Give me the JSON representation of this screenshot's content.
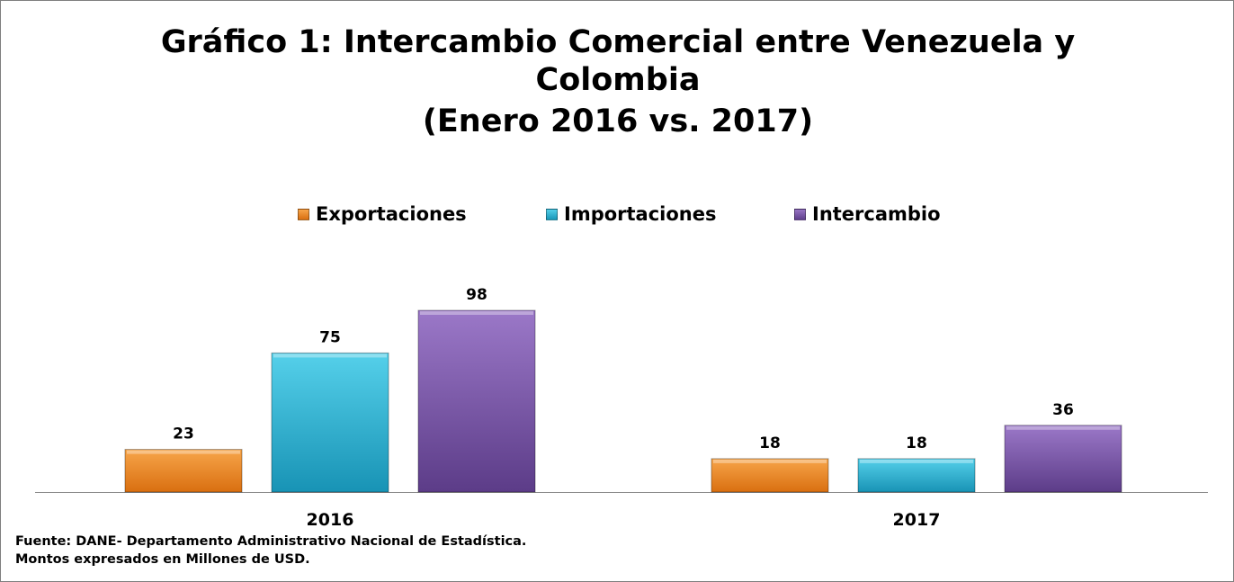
{
  "chart_data": {
    "type": "bar",
    "title_lines": [
      "Gráfico 1: Intercambio Comercial entre Venezuela y",
      "Colombia",
      "(Enero 2016 vs. 2017)"
    ],
    "categories": [
      "2016",
      "2017"
    ],
    "series": [
      {
        "name": "Exportaciones",
        "values": [
          23,
          18
        ],
        "color": "#f28c28"
      },
      {
        "name": "Importaciones",
        "values": [
          75,
          18
        ],
        "color": "#2bb5d6"
      },
      {
        "name": "Intercambio",
        "values": [
          98,
          36
        ],
        "color": "#7a57a8"
      }
    ],
    "ylim": [
      0,
      100
    ],
    "grid": false,
    "legend_position": "top-center",
    "data_labels": true
  },
  "footnote": {
    "source": "Fuente: DANE- Departamento Administrativo Nacional de Estadística.",
    "units": "Montos expresados en Millones de USD."
  }
}
